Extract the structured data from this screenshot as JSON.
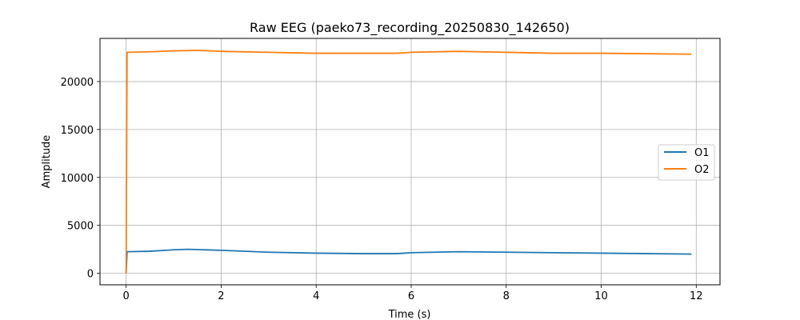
{
  "chart_data": {
    "type": "line",
    "title": "Raw EEG (paeko73_recording_20250830_142650)",
    "xlabel": "Time (s)",
    "ylabel": "Amplitude",
    "xlim": [
      -0.55,
      12.5
    ],
    "ylim": [
      -1200,
      24500
    ],
    "xticks": [
      0,
      2,
      4,
      6,
      8,
      10,
      12
    ],
    "yticks": [
      0,
      5000,
      10000,
      15000,
      20000
    ],
    "grid": true,
    "legend_position": "center-right",
    "colors": {
      "O1": "#1f77b4",
      "O2": "#ff7f0e"
    },
    "series": [
      {
        "name": "O1",
        "x": [
          0,
          0.02,
          0.5,
          1.0,
          1.3,
          2.0,
          3.0,
          4.0,
          5.0,
          5.7,
          6.0,
          7.0,
          8.0,
          9.0,
          10.0,
          11.0,
          11.9
        ],
        "values": [
          0,
          2250,
          2300,
          2450,
          2500,
          2400,
          2200,
          2100,
          2050,
          2050,
          2150,
          2250,
          2200,
          2150,
          2100,
          2050,
          2000
        ]
      },
      {
        "name": "O2",
        "x": [
          0,
          0.02,
          0.5,
          1.0,
          1.5,
          2.0,
          3.0,
          4.0,
          5.0,
          5.7,
          6.0,
          7.0,
          8.0,
          9.0,
          10.0,
          11.0,
          11.9
        ],
        "values": [
          0,
          23050,
          23100,
          23200,
          23250,
          23150,
          23050,
          22950,
          22950,
          22950,
          23050,
          23150,
          23050,
          22950,
          22950,
          22900,
          22850
        ]
      }
    ]
  }
}
